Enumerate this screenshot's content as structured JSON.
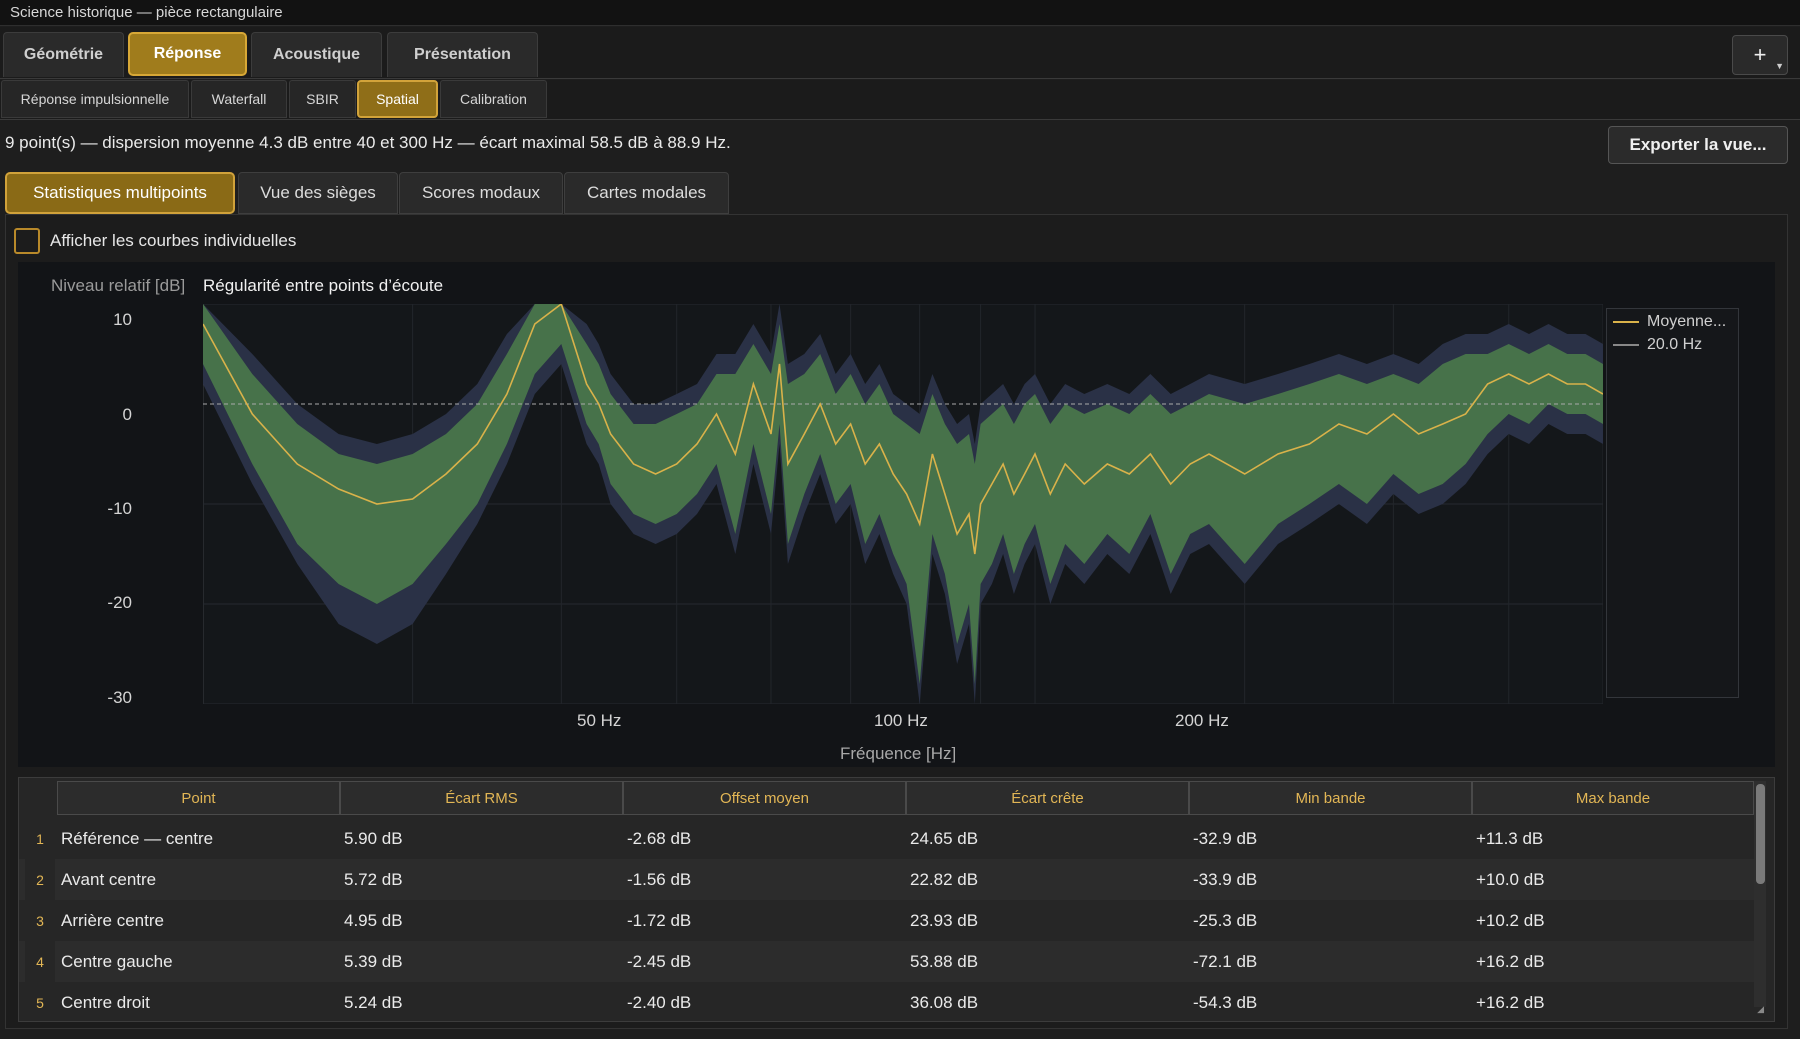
{
  "window": {
    "title": "Science historique — pièce rectangulaire"
  },
  "main_tabs": [
    {
      "label": "Géométrie",
      "active": false
    },
    {
      "label": "Réponse",
      "active": true
    },
    {
      "label": "Acoustique",
      "active": false
    },
    {
      "label": "Présentation",
      "active": false
    }
  ],
  "add_button": {
    "label": "+"
  },
  "sub_tabs": [
    {
      "label": "Réponse impulsionnelle",
      "active": false
    },
    {
      "label": "Waterfall",
      "active": false
    },
    {
      "label": "SBIR",
      "active": false
    },
    {
      "label": "Spatial",
      "active": true
    },
    {
      "label": "Calibration",
      "active": false
    }
  ],
  "info": "9 point(s) — dispersion moyenne 4.3 dB entre 40 et 300 Hz — écart maximal 58.5 dB à 88.9 Hz.",
  "export_button": "Exporter la vue...",
  "view_tabs": [
    {
      "label": "Statistiques multipoints",
      "active": true
    },
    {
      "label": "Vue des sièges",
      "active": false
    },
    {
      "label": "Scores modaux",
      "active": false
    },
    {
      "label": "Cartes modales",
      "active": false
    }
  ],
  "show_individual": {
    "label": "Afficher les courbes individuelles",
    "checked": false
  },
  "chart_data": {
    "type": "area",
    "title": "Régularité entre points d’écoute",
    "ylabel": "Niveau relatif [dB]",
    "xlabel": "Fréquence [Hz]",
    "x_scale": "log",
    "xlim": [
      20,
      300
    ],
    "ylim": [
      -30,
      10
    ],
    "yticks": [
      "10",
      "0",
      "-10",
      "-20",
      "-30"
    ],
    "xticks": [
      {
        "value": 50,
        "label": "50 Hz"
      },
      {
        "value": 100,
        "label": "100 Hz"
      },
      {
        "value": 200,
        "label": "200 Hz"
      }
    ],
    "grid": true,
    "legend_position": "right",
    "legend": [
      {
        "label": "Moyenne...",
        "color": "#d9b24a"
      },
      {
        "label": "20.0 Hz",
        "color": "#888888"
      }
    ],
    "colors": {
      "mean": "#d9b24a",
      "band": "#47724a",
      "envelope": "#2a3146",
      "zero_line": "#aaaaaa"
    },
    "x": [
      20,
      22,
      24,
      26,
      28,
      30,
      32,
      34,
      36,
      38,
      40,
      42,
      43,
      44,
      46,
      48,
      50,
      52,
      54,
      56,
      58,
      60,
      61,
      62,
      64,
      66,
      68,
      70,
      72,
      74,
      76,
      78,
      80,
      82,
      84,
      86,
      88,
      89,
      90,
      92,
      94,
      96,
      98,
      100,
      103,
      106,
      110,
      115,
      120,
      125,
      130,
      135,
      140,
      150,
      160,
      170,
      180,
      190,
      200,
      210,
      220,
      230,
      240,
      250,
      260,
      270,
      280,
      290,
      300
    ],
    "series": [
      {
        "name": "Moyenne...",
        "values": [
          8,
          -1,
          -6,
          -8.5,
          -10,
          -9.5,
          -7,
          -4,
          1,
          8,
          10,
          2,
          0,
          -3,
          -6,
          -7,
          -6,
          -4,
          -1,
          -5,
          2,
          -3,
          4,
          -6,
          -3,
          0,
          -4,
          -2,
          -6,
          -4,
          -7,
          -9,
          -12,
          -5,
          -9,
          -13,
          -11,
          -15,
          -10,
          -8,
          -6,
          -9,
          -7,
          -5,
          -9,
          -6,
          -8,
          -6,
          -7,
          -5,
          -8,
          -6,
          -5,
          -7,
          -5,
          -4,
          -2,
          -3,
          -1,
          -3,
          -2,
          -1,
          2,
          3,
          2,
          3,
          2,
          2,
          1
        ]
      },
      {
        "name": "band_upper",
        "values": [
          12,
          3,
          -2,
          -5,
          -6,
          -5,
          -3,
          0,
          5,
          12,
          14,
          6,
          4,
          1,
          -2,
          -2,
          -1,
          0,
          3,
          3,
          6,
          3,
          8,
          2,
          3,
          5,
          1,
          3,
          0,
          2,
          -1,
          -2,
          -3,
          1,
          -2,
          -4,
          -3,
          -6,
          -2,
          -1,
          0,
          -2,
          0,
          1,
          -2,
          0,
          -1,
          0,
          -1,
          1,
          -1,
          0,
          1,
          0,
          1,
          2,
          3,
          2,
          3,
          2,
          4,
          5,
          5,
          6,
          5,
          6,
          5,
          5,
          4
        ]
      },
      {
        "name": "band_lower",
        "values": [
          4,
          -6,
          -14,
          -18,
          -20,
          -18,
          -14,
          -10,
          -4,
          3,
          6,
          -2,
          -4,
          -8,
          -11,
          -12,
          -11,
          -9,
          -6,
          -13,
          -4,
          -11,
          -2,
          -14,
          -9,
          -5,
          -10,
          -8,
          -14,
          -11,
          -15,
          -18,
          -28,
          -13,
          -17,
          -24,
          -20,
          -28,
          -18,
          -16,
          -13,
          -17,
          -14,
          -12,
          -18,
          -14,
          -16,
          -13,
          -15,
          -11,
          -17,
          -13,
          -12,
          -16,
          -12,
          -10,
          -8,
          -10,
          -7,
          -9,
          -8,
          -6,
          -3,
          -1,
          -2,
          0,
          -1,
          -1,
          -2
        ]
      },
      {
        "name": "envelope_upper",
        "values": [
          14,
          5,
          0,
          -3,
          -4,
          -3,
          -1,
          2,
          7,
          14,
          16,
          8,
          6,
          3,
          0,
          0,
          1,
          2,
          5,
          5,
          8,
          5,
          10,
          4,
          5,
          7,
          3,
          5,
          2,
          4,
          1,
          0,
          -1,
          3,
          0,
          -2,
          -1,
          -4,
          0,
          1,
          2,
          0,
          2,
          3,
          0,
          2,
          1,
          2,
          1,
          3,
          1,
          2,
          3,
          2,
          3,
          4,
          5,
          4,
          5,
          4,
          6,
          7,
          7,
          8,
          7,
          8,
          7,
          7,
          6
        ]
      },
      {
        "name": "envelope_lower",
        "values": [
          2,
          -8,
          -16,
          -22,
          -24,
          -22,
          -17,
          -12,
          -6,
          1,
          4,
          -4,
          -6,
          -10,
          -13,
          -14,
          -13,
          -11,
          -8,
          -15,
          -6,
          -13,
          -4,
          -16,
          -11,
          -7,
          -12,
          -10,
          -16,
          -13,
          -17,
          -20,
          -30,
          -15,
          -19,
          -26,
          -22,
          -30,
          -20,
          -18,
          -15,
          -19,
          -16,
          -14,
          -20,
          -16,
          -18,
          -15,
          -17,
          -13,
          -19,
          -15,
          -14,
          -18,
          -14,
          -12,
          -10,
          -12,
          -9,
          -11,
          -10,
          -8,
          -5,
          -3,
          -4,
          -2,
          -3,
          -3,
          -4
        ]
      }
    ]
  },
  "table": {
    "headers": [
      "Point",
      "Écart RMS",
      "Offset moyen",
      "Écart crête",
      "Min bande",
      "Max bande"
    ],
    "rows": [
      {
        "n": "1",
        "cells": [
          "Référence — centre",
          "5.90 dB",
          "-2.68 dB",
          "24.65 dB",
          "-32.9 dB",
          "+11.3 dB"
        ]
      },
      {
        "n": "2",
        "cells": [
          "Avant centre",
          "5.72 dB",
          "-1.56 dB",
          "22.82 dB",
          "-33.9 dB",
          "+10.0 dB"
        ]
      },
      {
        "n": "3",
        "cells": [
          "Arrière centre",
          "4.95 dB",
          "-1.72 dB",
          "23.93 dB",
          "-25.3 dB",
          "+10.2 dB"
        ]
      },
      {
        "n": "4",
        "cells": [
          "Centre gauche",
          "5.39 dB",
          "-2.45 dB",
          "53.88 dB",
          "-72.1 dB",
          "+16.2 dB"
        ]
      },
      {
        "n": "5",
        "cells": [
          "Centre droit",
          "5.24 dB",
          "-2.40 dB",
          "36.08 dB",
          "-54.3 dB",
          "+16.2 dB"
        ]
      }
    ]
  }
}
